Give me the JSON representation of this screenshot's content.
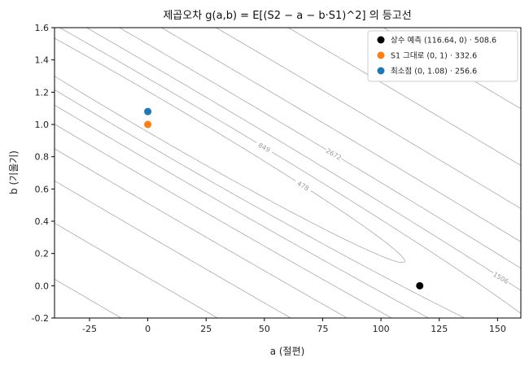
{
  "chart_data": {
    "type": "contour",
    "title": "제곱오차 g(a,b) = E[(S2 − a − b·S1)^2] 의 등고선",
    "xlabel": "a (절편)",
    "ylabel": "b (기울기)",
    "xlim": [
      -40,
      160
    ],
    "ylim": [
      -0.2,
      1.6
    ],
    "x_ticks": [
      -25,
      0,
      25,
      50,
      75,
      100,
      125,
      150
    ],
    "y_ticks": [
      -0.2,
      0.0,
      0.2,
      0.4,
      0.6,
      0.8,
      1.0,
      1.2,
      1.4,
      1.6
    ],
    "x_tick_labels": [
      "-25",
      "0",
      "25",
      "50",
      "75",
      "100",
      "125",
      "150"
    ],
    "y_tick_labels": [
      "-0.2",
      "0.0",
      "0.2",
      "0.4",
      "0.6",
      "0.8",
      "1.0",
      "1.2",
      "1.4",
      "1.6"
    ],
    "grid": false,
    "legend_position": "top-right",
    "contour_levels": [
      478,
      849,
      1506,
      2672,
      4743,
      8417,
      14936,
      26507
    ],
    "contour_color": "#aaaaaa",
    "points": [
      {
        "label": "상수 예측 (116.64, 0) · 508.6",
        "x": 116.64,
        "y": 0.0,
        "color": "#000000"
      },
      {
        "label": "S1 그대로 (0, 1) · 332.6",
        "x": 0.0,
        "y": 1.0,
        "color": "#ff7f0e"
      },
      {
        "label": "최소점 (0, 1.08) · 256.6",
        "x": 0.0,
        "y": 1.08,
        "color": "#1f77b4"
      }
    ]
  }
}
